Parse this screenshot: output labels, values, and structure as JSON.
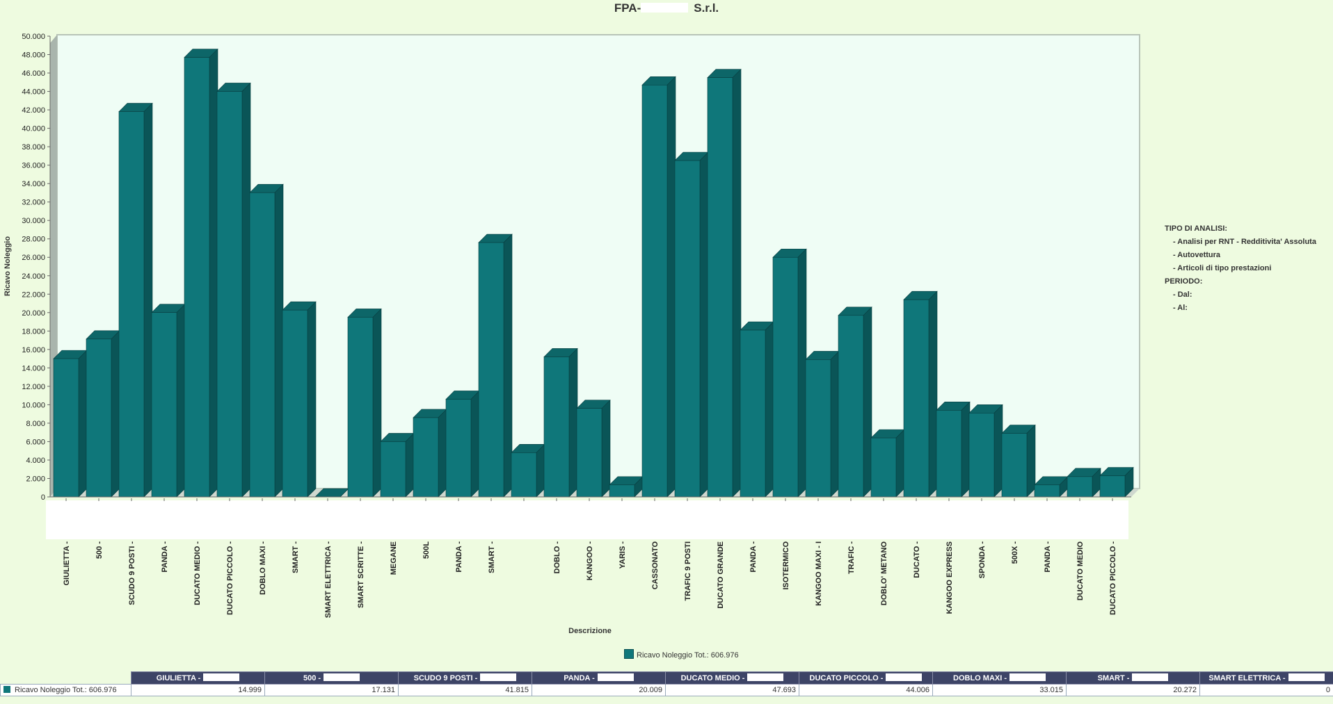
{
  "header": {
    "title_prefix": "FPA-",
    "title_suffix": "S.r.l."
  },
  "info_panel": {
    "tipo_label": "TIPO DI ANALISI:",
    "tipo_items": [
      "- Analisi per RNT - Redditivita' Assoluta",
      "- Autovettura",
      "- Articoli di tipo prestazioni"
    ],
    "periodo_label": "PERIODO:",
    "periodo_items": [
      "- Dal:",
      "- Al:"
    ]
  },
  "colors": {
    "bar_front": "#0f777a",
    "bar_side": "#0a5557",
    "bar_top": "#0d6668",
    "plot_bg": "#effdf5"
  },
  "chart_data": {
    "type": "bar",
    "ylabel": "Ricavo Noleggio",
    "xlabel": "Descrizione",
    "ylim": [
      0,
      50000
    ],
    "yticks": [
      "0",
      "2.000",
      "4.000",
      "6.000",
      "8.000",
      "10.000",
      "12.000",
      "14.000",
      "16.000",
      "18.000",
      "20.000",
      "22.000",
      "24.000",
      "26.000",
      "28.000",
      "30.000",
      "32.000",
      "34.000",
      "36.000",
      "38.000",
      "40.000",
      "42.000",
      "44.000",
      "46.000",
      "48.000",
      "50.000"
    ],
    "categories": [
      "GIULIETTA -",
      "500 -",
      "SCUDO 9 POSTI -",
      "PANDA -",
      "DUCATO MEDIO -",
      "DUCATO PICCOLO -",
      "DOBLO MAXI -",
      "SMART -",
      "SMART ELETTRICA -",
      "SMART SCRITTE -",
      "MEGANE",
      "500L",
      "PANDA -",
      "SMART -",
      "",
      "DOBLO -",
      "KANGOO -",
      "YARIS -",
      "CASSONATO",
      "TRAFIC 9 POSTI",
      "DUCATO GRANDE",
      "PANDA -",
      "ISOTERMICO",
      "KANGOO MAXI - I",
      "TRAFIC -",
      "DOBLO' METANO",
      "DUCATO -",
      "KANGOO EXPRESS",
      "SPONDA -",
      "500X -",
      "PANDA -",
      "DUCATO MEDIO",
      "DUCATO PICCOLO -"
    ],
    "series": [
      {
        "name": "Ricavo Noleggio Tot.: 606.976",
        "values": [
          14999,
          17131,
          41815,
          20009,
          47693,
          44006,
          33015,
          20272,
          0,
          19500,
          6000,
          8600,
          10600,
          27600,
          4800,
          15200,
          9600,
          1300,
          44700,
          36500,
          45500,
          18100,
          26000,
          14900,
          19700,
          6400,
          21400,
          9400,
          9100,
          6900,
          1300,
          2200,
          2300
        ]
      }
    ],
    "grid": false,
    "legend": "bottom-center"
  },
  "data_table": {
    "headers": [
      "GIULIETTA -",
      "500 -",
      "SCUDO 9 POSTI -",
      "PANDA -",
      "DUCATO MEDIO -",
      "DUCATO PICCOLO -",
      "DOBLO MAXI -",
      "SMART -",
      "SMART ELETTRICA -"
    ],
    "row_label": "Ricavo Noleggio Tot.: 606.976",
    "values": [
      "14.999",
      "17.131",
      "41.815",
      "20.009",
      "47.693",
      "44.006",
      "33.015",
      "20.272",
      "0"
    ]
  }
}
